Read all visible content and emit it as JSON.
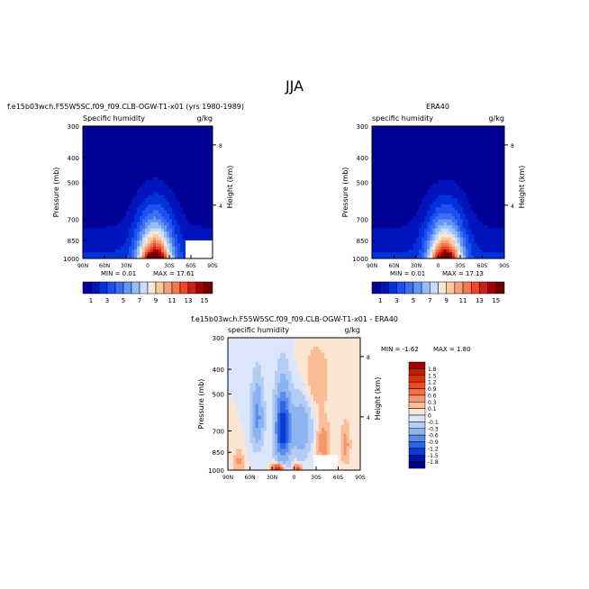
{
  "figure_title": "JJA",
  "chart_data": [
    {
      "type": "contour",
      "title": "f.e15b03wch.F55W5SC.f09_f09.CLB-OGW-T1-x01 (yrs 1980-1989)",
      "variable": "Specific humidity",
      "units": "g/kg",
      "xlabel": "",
      "ylabel": "Pressure (mb)",
      "ylabel_right": "Height (km)",
      "x_ticks": [
        "90N",
        "60N",
        "30N",
        "0",
        "30S",
        "60S",
        "90S"
      ],
      "y_ticks": [
        300,
        400,
        500,
        700,
        850,
        1000
      ],
      "right_ticks": [
        8,
        4
      ],
      "xlim": [
        "90N",
        "90S"
      ],
      "ylim": [
        1000,
        300
      ],
      "y_scale": "log",
      "min_text": "MIN =   0.01",
      "max_text": "MAX =   17.61",
      "min": 0.01,
      "max": 17.61,
      "colorbar": {
        "orientation": "horizontal",
        "labels": [
          "1",
          "3",
          "5",
          "7",
          "9",
          "11",
          "13",
          "15"
        ],
        "colors": [
          "#000096",
          "#0014be",
          "#0032dc",
          "#1e50f0",
          "#3c6ef5",
          "#6496f5",
          "#96bef5",
          "#c8dcfa",
          "#fae6d2",
          "#fac8a0",
          "#f5a078",
          "#f57850",
          "#f04628",
          "#d21e14",
          "#a00000",
          "#6e0000"
        ]
      },
      "peak_latitude": -10,
      "peak_value": 17.6
    },
    {
      "type": "contour",
      "title": "ERA40",
      "variable": "specific humidity",
      "units": "g/kg",
      "xlabel": "",
      "ylabel": "Pressure (mb)",
      "ylabel_right": "Height (km)",
      "x_ticks": [
        "90N",
        "60N",
        "30N",
        "0",
        "30S",
        "60S",
        "90S"
      ],
      "y_ticks": [
        300,
        400,
        500,
        700,
        850,
        1000
      ],
      "right_ticks": [
        8,
        4
      ],
      "xlim": [
        "90N",
        "90S"
      ],
      "ylim": [
        1000,
        300
      ],
      "y_scale": "log",
      "min_text": "MIN =   0.01",
      "max_text": "MAX =   17.13",
      "min": 0.01,
      "max": 17.13,
      "colorbar": {
        "orientation": "horizontal",
        "labels": [
          "1",
          "3",
          "5",
          "7",
          "9",
          "11",
          "13",
          "15"
        ],
        "colors": [
          "#000096",
          "#0014be",
          "#0032dc",
          "#1e50f0",
          "#3c6ef5",
          "#6496f5",
          "#96bef5",
          "#c8dcfa",
          "#fae6d2",
          "#fac8a0",
          "#f5a078",
          "#f57850",
          "#f04628",
          "#d21e14",
          "#a00000",
          "#6e0000"
        ]
      },
      "peak_latitude": -10,
      "peak_value": 17.1
    },
    {
      "type": "contour",
      "title": "f.e15b03wch.F55W5SC.f09_f09.CLB-OGW-T1-x01 - ERA40",
      "variable": "specific humidity",
      "units": "g/kg",
      "xlabel": "",
      "ylabel": "Pressure (mb)",
      "ylabel_right": "Height (km)",
      "x_ticks": [
        "90N",
        "60N",
        "30N",
        "0",
        "30S",
        "60S",
        "90S"
      ],
      "y_ticks": [
        300,
        400,
        500,
        700,
        850,
        1000
      ],
      "right_ticks": [
        8,
        4
      ],
      "xlim": [
        "90N",
        "90S"
      ],
      "ylim": [
        1000,
        300
      ],
      "y_scale": "log",
      "min_text": "MIN =  -1.62",
      "max_text": "MAX =    1.80",
      "min": -1.62,
      "max": 1.8,
      "colorbar": {
        "orientation": "vertical",
        "labels": [
          "1.8",
          "1.5",
          "1.2",
          "0.9",
          "0.6",
          "0.3",
          "0.1",
          "0",
          "-0.1",
          "-0.3",
          "-0.6",
          "-0.9",
          "-1.2",
          "-1.5",
          "-1.8"
        ],
        "colors": [
          "#a00000",
          "#be1e00",
          "#dc320a",
          "#f04b1e",
          "#f56e46",
          "#f5966e",
          "#fabe96",
          "#fae6d2",
          "#dce6fa",
          "#b4cdf5",
          "#8cb4f0",
          "#5a8ceb",
          "#2d64e1",
          "#0a3cd2",
          "#0014aa",
          "#000082"
        ]
      }
    }
  ]
}
